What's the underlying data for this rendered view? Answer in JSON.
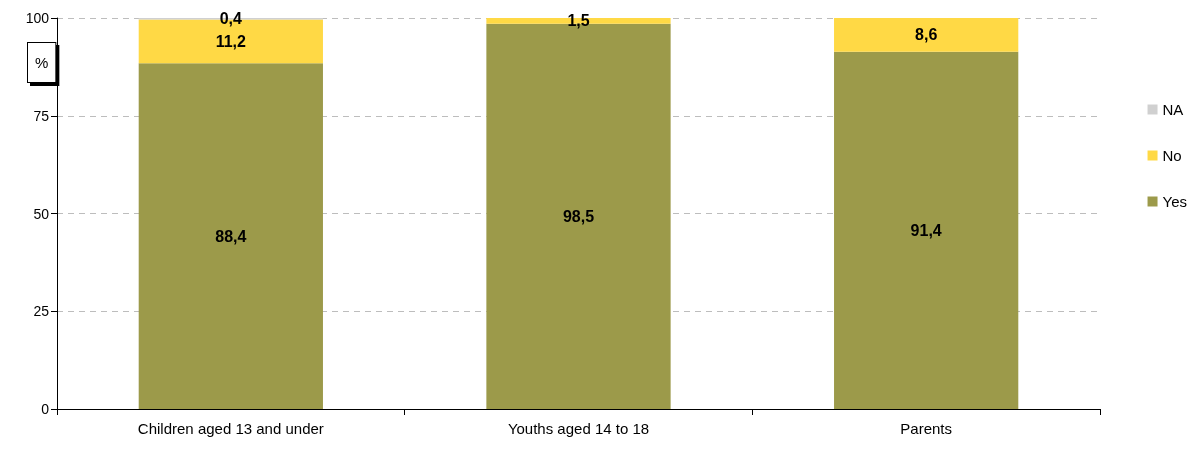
{
  "chart_data": {
    "type": "bar",
    "stacked": true,
    "categories": [
      "Children aged 13 and under",
      "Youths aged 14 to 18",
      "Parents"
    ],
    "series": [
      {
        "name": "Yes",
        "color": "#9c9a4a",
        "values": [
          88.4,
          98.5,
          91.4
        ],
        "value_labels": [
          "88,4",
          "98,5",
          "91,4"
        ]
      },
      {
        "name": "No",
        "color": "#ffd945",
        "values": [
          11.2,
          1.5,
          8.6
        ],
        "value_labels": [
          "11,2",
          "1,5",
          "8,6"
        ]
      },
      {
        "name": "NA",
        "color": "#d0d0d0",
        "values": [
          0.4,
          null,
          null
        ],
        "value_labels": [
          "0,4",
          null,
          null
        ]
      }
    ],
    "ylabel": "%",
    "ylim": [
      0,
      100
    ],
    "yticks": [
      0,
      25,
      50,
      75,
      100
    ],
    "grid": "y",
    "legend": "right"
  }
}
